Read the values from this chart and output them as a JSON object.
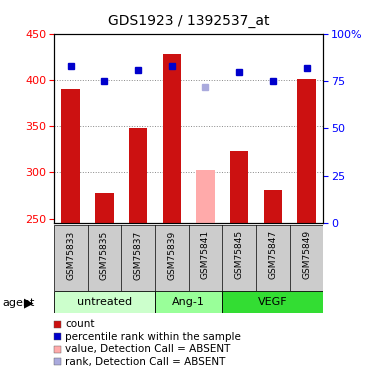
{
  "title": "GDS1923 / 1392537_at",
  "samples": [
    "GSM75833",
    "GSM75835",
    "GSM75837",
    "GSM75839",
    "GSM75841",
    "GSM75845",
    "GSM75847",
    "GSM75849"
  ],
  "count_values": [
    390,
    278,
    348,
    428,
    302,
    323,
    281,
    401
  ],
  "count_absent": [
    false,
    false,
    false,
    false,
    true,
    false,
    false,
    false
  ],
  "rank_values": [
    83,
    75,
    81,
    83,
    72,
    80,
    75,
    82
  ],
  "rank_absent": [
    false,
    false,
    false,
    false,
    true,
    false,
    false,
    false
  ],
  "ylim_left": [
    245,
    450
  ],
  "ylim_right": [
    0,
    100
  ],
  "yticks_left": [
    250,
    300,
    350,
    400,
    450
  ],
  "yticks_right": [
    0,
    25,
    50,
    75,
    100
  ],
  "groups": [
    {
      "label": "untreated",
      "indices": [
        0,
        1,
        2
      ],
      "color": "#ccffcc"
    },
    {
      "label": "Ang-1",
      "indices": [
        3,
        4
      ],
      "color": "#99ff99"
    },
    {
      "label": "VEGF",
      "indices": [
        5,
        6,
        7
      ],
      "color": "#33dd33"
    }
  ],
  "bar_color_normal": "#cc1111",
  "bar_color_absent": "#ffaaaa",
  "rank_color_normal": "#0000cc",
  "rank_color_absent": "#aaaadd",
  "bar_width": 0.55,
  "grid_color": "#888888",
  "bg_plot": "#ffffff",
  "bg_sample_row": "#cccccc",
  "agent_label": "agent"
}
